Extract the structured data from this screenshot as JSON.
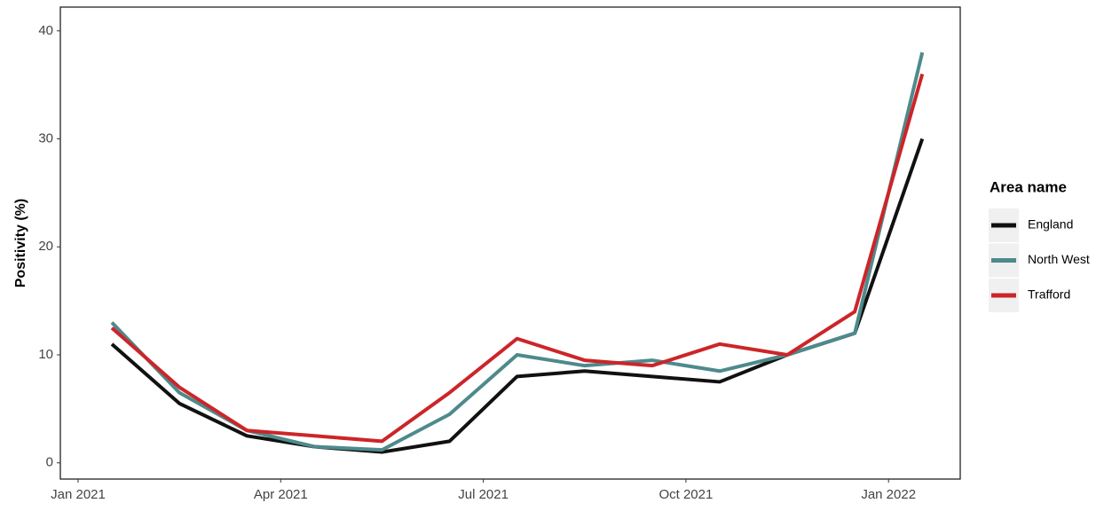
{
  "chart_data": {
    "type": "line",
    "y_label": "Positivity (%)",
    "x": [
      "2021-01",
      "2021-02",
      "2021-03",
      "2021-04",
      "2021-05",
      "2021-06",
      "2021-07",
      "2021-08",
      "2021-09",
      "2021-10",
      "2021-11",
      "2021-12",
      "2022-01"
    ],
    "series": [
      {
        "name": "England",
        "color": "#111111",
        "values": [
          11,
          5.5,
          2.5,
          1.5,
          1,
          2,
          8,
          8.5,
          8,
          7.5,
          10,
          12,
          30
        ]
      },
      {
        "name": "North West",
        "color": "#4e8a8c",
        "values": [
          13,
          6.5,
          3,
          1.5,
          1.2,
          4.5,
          10,
          9,
          9.5,
          8.5,
          10,
          12,
          38
        ]
      },
      {
        "name": "Trafford",
        "color": "#cc2529",
        "values": [
          12.5,
          7,
          3,
          2.5,
          2,
          6.5,
          11.5,
          9.5,
          9,
          11,
          10,
          14,
          36
        ]
      }
    ],
    "xticks": [
      {
        "value": "2021-01",
        "label": "Jan 2021"
      },
      {
        "value": "2021-04",
        "label": "Apr 2021"
      },
      {
        "value": "2021-07",
        "label": "Jul 2021"
      },
      {
        "value": "2021-10",
        "label": "Oct 2021"
      },
      {
        "value": "2022-01",
        "label": "Jan 2022"
      }
    ],
    "ylim": [
      -1.5,
      42.2
    ],
    "yticks": [
      0,
      10,
      20,
      30,
      40
    ],
    "legend_title": "Area name",
    "legend": "right"
  }
}
